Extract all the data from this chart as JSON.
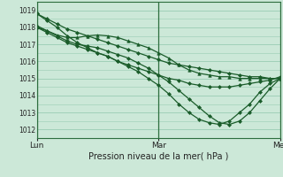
{
  "xlabel": "Pression niveau de la mer( hPa )",
  "bg_color": "#cce8d8",
  "grid_color": "#99ccb3",
  "line_color": "#1a5c2a",
  "ylim": [
    1011.5,
    1019.5
  ],
  "xlim": [
    0,
    48
  ],
  "yticks": [
    1012,
    1013,
    1014,
    1015,
    1016,
    1017,
    1018,
    1019
  ],
  "xtick_positions": [
    0,
    24,
    48
  ],
  "xtick_labels": [
    "Lun",
    "Mar",
    "Mer"
  ],
  "series": [
    {
      "x": [
        0,
        2,
        4,
        6,
        8,
        10,
        12,
        14,
        16,
        18,
        20,
        22,
        24,
        26,
        28,
        30,
        32,
        34,
        36,
        38,
        40,
        42,
        44,
        46,
        48
      ],
      "y": [
        1018.8,
        1018.5,
        1018.2,
        1017.9,
        1017.7,
        1017.5,
        1017.3,
        1017.1,
        1016.9,
        1016.7,
        1016.5,
        1016.3,
        1016.1,
        1015.9,
        1015.8,
        1015.7,
        1015.6,
        1015.5,
        1015.4,
        1015.3,
        1015.2,
        1015.1,
        1015.1,
        1015.0,
        1015.0
      ],
      "marker": "D",
      "ms": 2.0,
      "lw": 0.9
    },
    {
      "x": [
        0,
        2,
        4,
        6,
        8,
        10,
        12,
        14,
        16,
        18,
        20,
        22,
        24,
        26,
        28,
        30,
        32,
        34,
        36,
        38,
        40,
        42,
        44,
        46,
        48
      ],
      "y": [
        1018.1,
        1017.8,
        1017.55,
        1017.4,
        1017.4,
        1017.5,
        1017.55,
        1017.5,
        1017.4,
        1017.2,
        1017.0,
        1016.8,
        1016.5,
        1016.2,
        1015.8,
        1015.5,
        1015.3,
        1015.2,
        1015.1,
        1015.1,
        1015.0,
        1015.0,
        1015.0,
        1015.0,
        1015.0
      ],
      "marker": "^",
      "ms": 2.5,
      "lw": 0.9
    },
    {
      "x": [
        0,
        2,
        4,
        6,
        8,
        10,
        12,
        14,
        16,
        18,
        20,
        22,
        24,
        26,
        28,
        30,
        32,
        34,
        36,
        38,
        40,
        42,
        44,
        46,
        48
      ],
      "y": [
        1018.0,
        1017.8,
        1017.5,
        1017.2,
        1017.0,
        1016.9,
        1016.8,
        1016.6,
        1016.4,
        1016.2,
        1015.9,
        1015.6,
        1015.2,
        1014.8,
        1014.3,
        1013.8,
        1013.3,
        1012.8,
        1012.4,
        1012.3,
        1012.5,
        1013.0,
        1013.7,
        1014.4,
        1015.0
      ],
      "marker": "D",
      "ms": 2.0,
      "lw": 0.9
    },
    {
      "x": [
        0,
        2,
        4,
        6,
        8,
        10,
        12,
        14,
        16,
        18,
        20,
        22,
        24,
        26,
        28,
        30,
        32,
        34,
        36,
        38,
        40,
        42,
        44,
        46,
        48
      ],
      "y": [
        1018.0,
        1017.7,
        1017.4,
        1017.1,
        1016.9,
        1016.7,
        1016.5,
        1016.3,
        1016.0,
        1015.7,
        1015.4,
        1015.0,
        1014.6,
        1014.1,
        1013.5,
        1013.0,
        1012.6,
        1012.4,
        1012.3,
        1012.5,
        1013.0,
        1013.5,
        1014.2,
        1014.7,
        1015.0
      ],
      "marker": "D",
      "ms": 2.0,
      "lw": 0.9
    },
    {
      "x": [
        0,
        2,
        4,
        6,
        8,
        10,
        12,
        14,
        16,
        18,
        20,
        22,
        24,
        26,
        28,
        30,
        32,
        34,
        36,
        38,
        40,
        42,
        44,
        46,
        48
      ],
      "y": [
        1018.8,
        1018.4,
        1018.0,
        1017.5,
        1017.1,
        1016.8,
        1016.5,
        1016.3,
        1016.0,
        1015.8,
        1015.6,
        1015.4,
        1015.2,
        1015.0,
        1014.9,
        1014.7,
        1014.6,
        1014.5,
        1014.5,
        1014.5,
        1014.6,
        1014.7,
        1014.8,
        1014.9,
        1015.1
      ],
      "marker": "D",
      "ms": 2.0,
      "lw": 0.9
    }
  ],
  "vline_positions": [
    0,
    24,
    48
  ],
  "vline_color": "#2d6e3e"
}
